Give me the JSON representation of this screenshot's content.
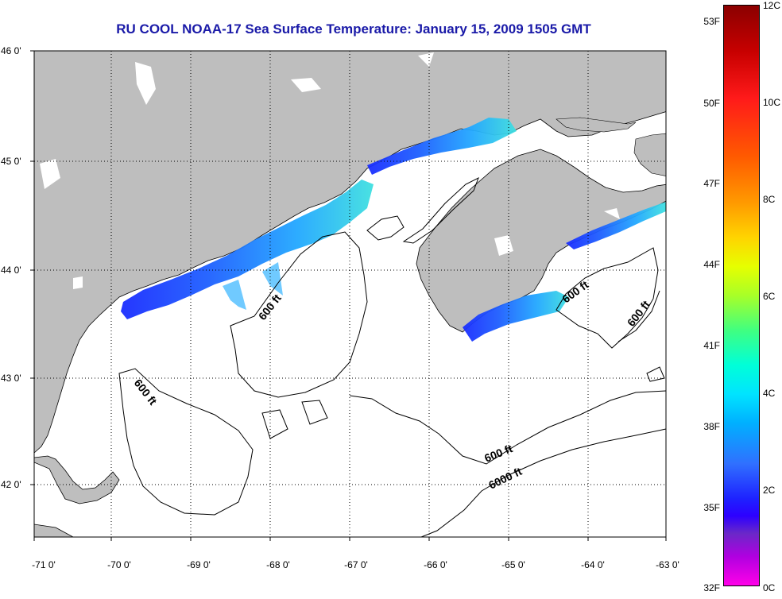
{
  "title": "RU COOL  NOAA-17  Sea Surface Temperature:  January 15, 2009 1505 GMT",
  "colors": {
    "land": "#bebebe",
    "ocean": "#ffffff",
    "title": "#1a1aa8"
  },
  "map": {
    "lon_range": [
      -71,
      -63
    ],
    "lat_range": [
      41.5,
      46
    ],
    "grid": "dotted",
    "x_ticks": [
      "-71 0'",
      "-70 0'",
      "-69 0'",
      "-68 0'",
      "-67 0'",
      "-66 0'",
      "-65 0'",
      "-64 0'",
      "-63 0'"
    ],
    "y_ticks": [
      "46 0'",
      "45 0'",
      "44 0'",
      "43 0'",
      "42 0'"
    ],
    "contour_labels": [
      "600 ft",
      "600 ft",
      "600 ft",
      "600 ft",
      "600 ft",
      "6000 ft"
    ]
  },
  "colorbar": {
    "fahrenheit_labels": [
      "53F",
      "50F",
      "47F",
      "44F",
      "41F",
      "38F",
      "35F",
      "32F"
    ],
    "celsius_labels": [
      "12C",
      "10C",
      "8C",
      "6C",
      "4C",
      "2C",
      "0C"
    ],
    "range_c": [
      0,
      12
    ],
    "range_f": [
      32,
      53
    ]
  }
}
